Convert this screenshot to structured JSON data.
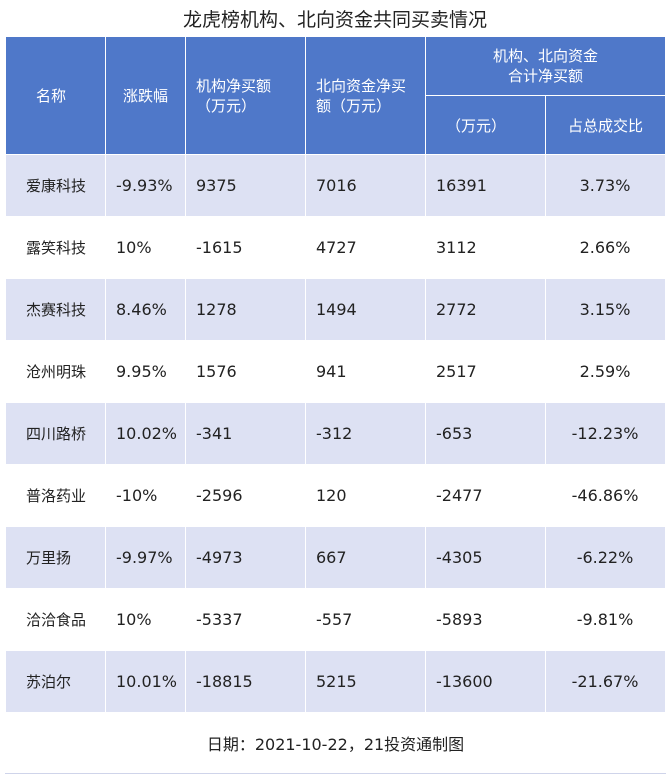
{
  "title": "龙虎榜机构、北向资金共同买卖情况",
  "headers": {
    "name": "名称",
    "change": "涨跌幅",
    "inst_line1": "机构净买额",
    "inst_line2": "（万元）",
    "north_line1": "北向资金净买",
    "north_line2": "额（万元）",
    "combined_line1": "机构、北向资金",
    "combined_line2": "合计净买额",
    "combined_unit": "（万元）",
    "ratio": "占总成交比"
  },
  "rows": [
    {
      "name": "爱康科技",
      "change": "-9.93%",
      "inst": "9375",
      "north": "7016",
      "total": "16391",
      "ratio": "3.73%"
    },
    {
      "name": "露笑科技",
      "change": "10%",
      "inst": "-1615",
      "north": "4727",
      "total": "3112",
      "ratio": "2.66%"
    },
    {
      "name": "杰赛科技",
      "change": "8.46%",
      "inst": "1278",
      "north": "1494",
      "total": "2772",
      "ratio": "3.15%"
    },
    {
      "name": "沧州明珠",
      "change": "9.95%",
      "inst": "1576",
      "north": "941",
      "total": "2517",
      "ratio": "2.59%"
    },
    {
      "name": "四川路桥",
      "change": "10.02%",
      "inst": "-341",
      "north": "-312",
      "total": "-653",
      "ratio": "-12.23%"
    },
    {
      "name": "普洛药业",
      "change": "-10%",
      "inst": "-2596",
      "north": "120",
      "total": "-2477",
      "ratio": "-46.86%"
    },
    {
      "name": "万里扬",
      "change": "-9.97%",
      "inst": "-4973",
      "north": "667",
      "total": "-4305",
      "ratio": "-6.22%"
    },
    {
      "name": "洽洽食品",
      "change": "10%",
      "inst": "-5337",
      "north": "-557",
      "total": "-5893",
      "ratio": "-9.81%"
    },
    {
      "name": "苏泊尔",
      "change": "10.01%",
      "inst": "-18815",
      "north": "5215",
      "total": "-13600",
      "ratio": "-21.67%"
    }
  ],
  "footer": "日期：2021-10-22，21投资通制图",
  "colors": {
    "header_bg": "#4f78c9",
    "row_shade": "#dde1f3",
    "row_plain": "#ffffff"
  }
}
